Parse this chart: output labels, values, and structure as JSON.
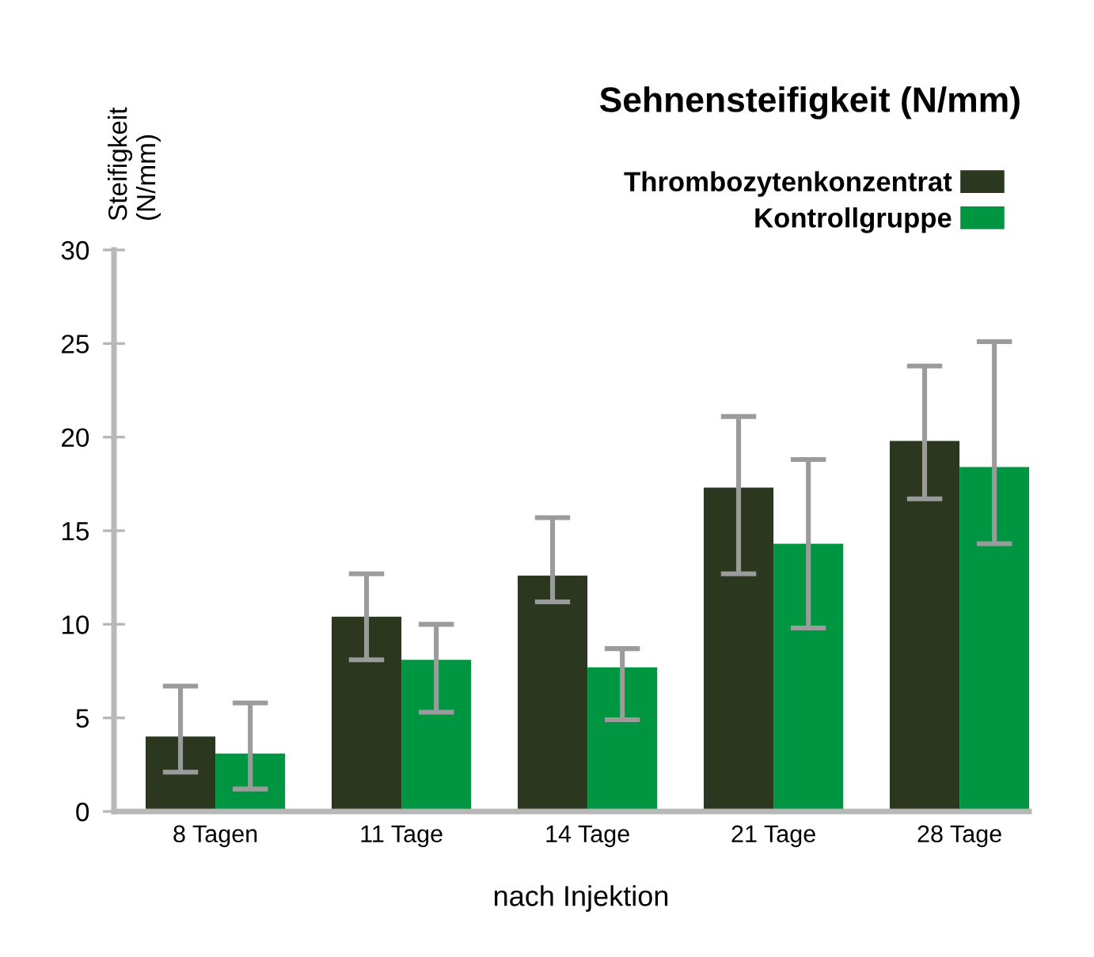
{
  "chart_data": {
    "type": "bar",
    "title": "Sehnensteifigkeit (N/mm)",
    "ylabel": "Steifigkeit\n(N/mm)",
    "xlabel": "nach Injektion",
    "categories": [
      "8 Tagen",
      "11 Tage",
      "14 Tage",
      "21 Tage",
      "28 Tage"
    ],
    "series": [
      {
        "name": "Thrombozytenkonzentrat",
        "color": "#2b371e",
        "values": [
          4.0,
          10.4,
          12.6,
          17.3,
          19.8
        ],
        "errors": [
          [
            2.1,
            6.7
          ],
          [
            8.1,
            12.7
          ],
          [
            11.2,
            15.7
          ],
          [
            12.7,
            21.1
          ],
          [
            16.7,
            23.8
          ]
        ]
      },
      {
        "name": "Kontrollgruppe",
        "color": "#009540",
        "values": [
          3.1,
          8.1,
          7.7,
          14.3,
          18.4
        ],
        "errors": [
          [
            1.2,
            5.8
          ],
          [
            5.3,
            10.0
          ],
          [
            4.9,
            8.7
          ],
          [
            9.8,
            18.8
          ],
          [
            14.3,
            25.1
          ]
        ]
      }
    ],
    "ylim": [
      0,
      30
    ],
    "yticks": [
      0,
      5,
      10,
      15,
      20,
      25,
      30
    ],
    "grid": false,
    "legend": "top right"
  }
}
